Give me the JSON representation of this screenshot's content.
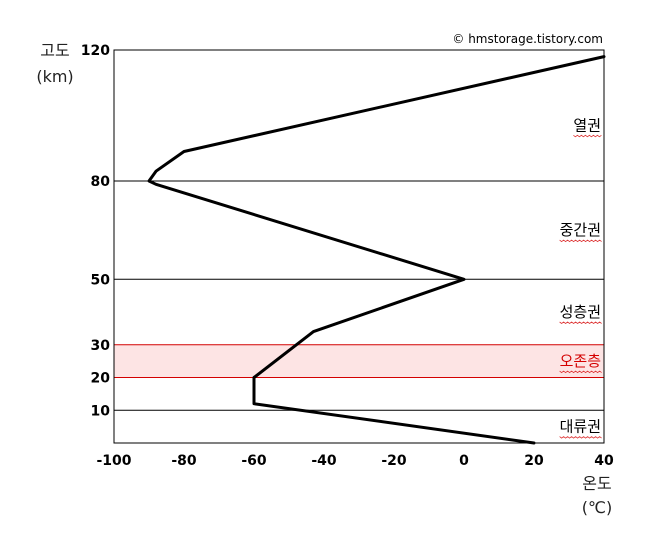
{
  "chart_data": {
    "type": "line",
    "title": "",
    "credit": "© hmstorage.tistory.com",
    "xlabel": "온도",
    "xunit": "(℃)",
    "ylabel": "고도",
    "yunit": "(km)",
    "xlim": [
      -100,
      40
    ],
    "ylim": [
      0,
      120
    ],
    "x_ticks": [
      "-100",
      "-80",
      "-60",
      "-40",
      "-20",
      "0",
      "20",
      "40"
    ],
    "y_ticks": [
      "120",
      "80",
      "50",
      "30",
      "20",
      "10"
    ],
    "series": [
      {
        "x": [
          20,
          -60,
          -60,
          -43,
          0,
          -88,
          -90,
          -88,
          -80,
          40
        ],
        "y": [
          0,
          12,
          20,
          34,
          50,
          79,
          80,
          83,
          89,
          118
        ]
      }
    ],
    "layer_boundaries_km": [
      10,
      50,
      80,
      120
    ],
    "ozone_layer_km": [
      20,
      30
    ],
    "regions": [
      {
        "label": "열권",
        "y": 97,
        "color": "#000000"
      },
      {
        "label": "중간권",
        "y": 65,
        "color": "#000000"
      },
      {
        "label": "성층권",
        "y": 40,
        "color": "#000000"
      },
      {
        "label": "오존층",
        "y": 25,
        "color": "#d40000"
      },
      {
        "label": "대류권",
        "y": 5,
        "color": "#000000"
      }
    ],
    "colors": {
      "line": "#000000",
      "ozone_fill": "#fde4e4",
      "ozone_border": "#d40000",
      "gridline": "#000000"
    }
  }
}
